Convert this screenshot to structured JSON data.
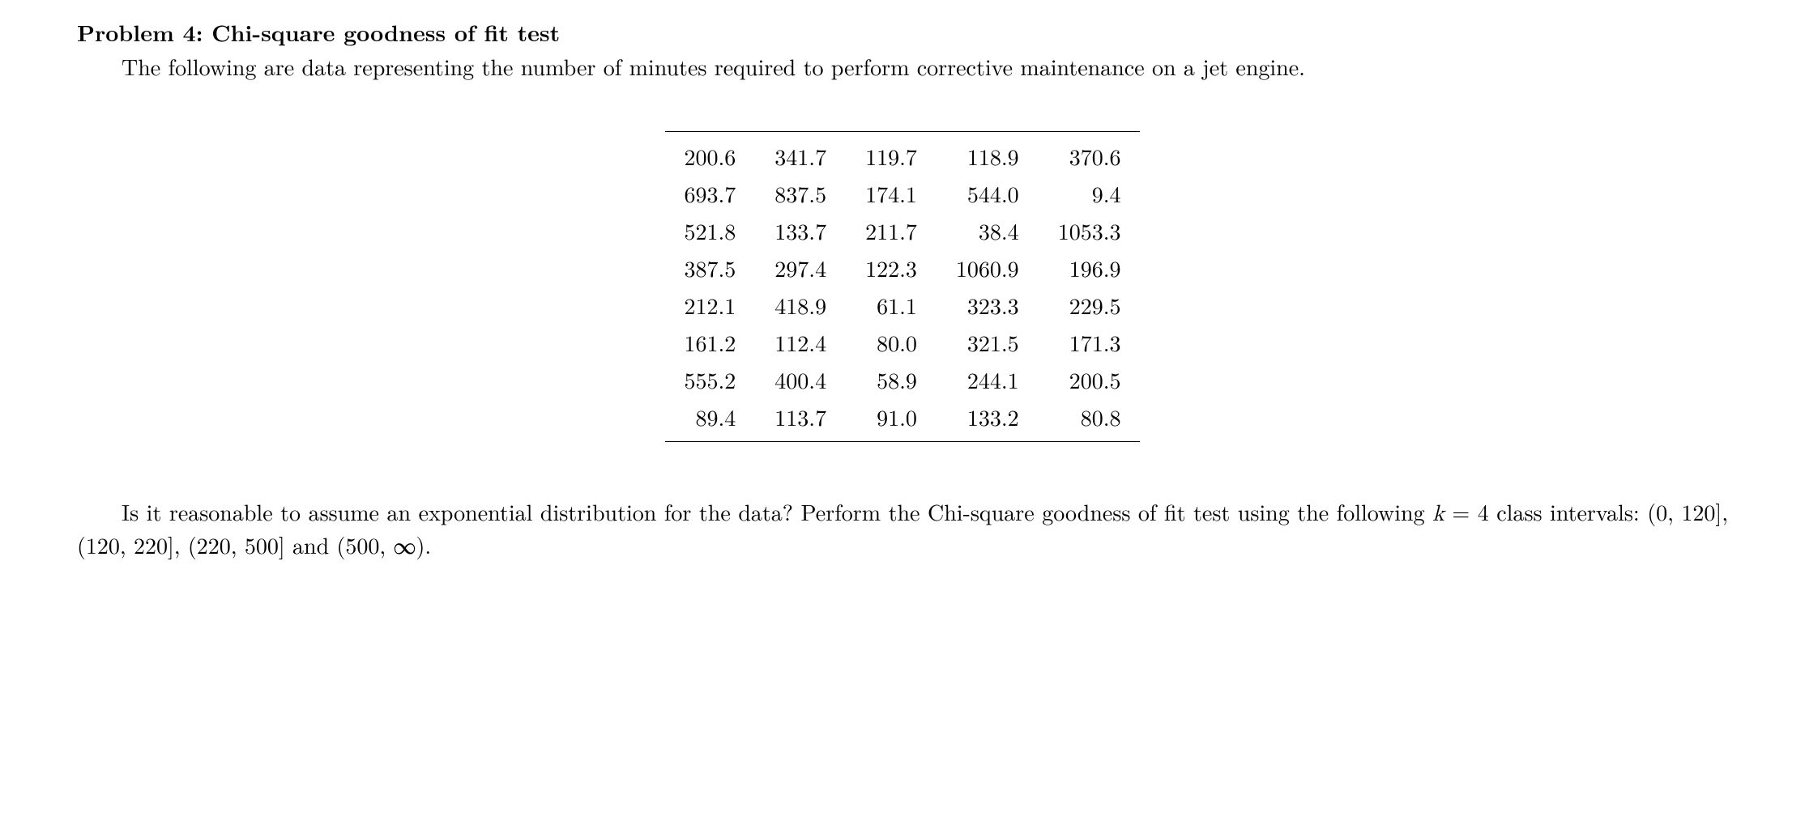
{
  "problem": {
    "label": "Problem 4: ",
    "title": "Chi-square goodness of fit test",
    "intro": "The following are data representing the number of minutes required to perform corrective maintenance on a jet engine.",
    "question_part1": "Is it reasonable to assume an exponential distribution for the data?  Perform the Chi-square goodness of fit test using the following ",
    "k_var": "k",
    "equals": " = 4 class intervals: (0, 120], (120, 220], (220, 500] and (500, ∞)."
  },
  "data_table": {
    "rows": [
      [
        "200.6",
        "341.7",
        "119.7",
        "118.9",
        "370.6"
      ],
      [
        "693.7",
        "837.5",
        "174.1",
        "544.0",
        "9.4"
      ],
      [
        "521.8",
        "133.7",
        "211.7",
        "38.4",
        "1053.3"
      ],
      [
        "387.5",
        "297.4",
        "122.3",
        "1060.9",
        "196.9"
      ],
      [
        "212.1",
        "418.9",
        "61.1",
        "323.3",
        "229.5"
      ],
      [
        "161.2",
        "112.4",
        "80.0",
        "321.5",
        "171.3"
      ],
      [
        "555.2",
        "400.4",
        "58.9",
        "244.1",
        "200.5"
      ],
      [
        "89.4",
        "113.7",
        "91.0",
        "133.2",
        "80.8"
      ]
    ]
  }
}
